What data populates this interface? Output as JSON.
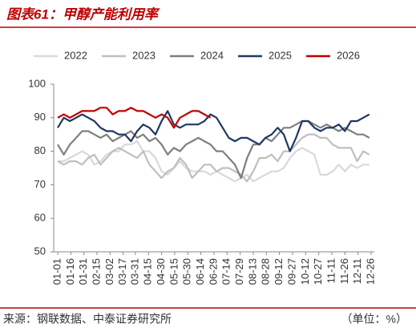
{
  "chart_data": {
    "type": "line",
    "title": "图表61：甲醇产能利用率",
    "source": "来源：钢联数据、中泰证券研究所",
    "unit": "（单位：%）",
    "x": [
      0,
      7,
      14,
      21,
      28,
      35,
      42,
      49,
      56,
      63,
      70,
      77,
      84,
      91,
      98,
      105,
      112,
      119,
      126,
      133,
      140,
      147,
      154,
      161,
      168,
      175,
      182,
      189,
      196,
      203,
      210,
      217,
      224,
      231,
      238,
      245,
      252,
      259,
      266,
      273,
      280,
      287,
      294,
      301,
      308,
      315,
      322,
      329,
      336,
      343,
      350,
      357
    ],
    "xlim": [
      0,
      359
    ],
    "xticks": [
      {
        "value": 0,
        "label": "01-01"
      },
      {
        "value": 15,
        "label": "01-16"
      },
      {
        "value": 30,
        "label": "01-31"
      },
      {
        "value": 45,
        "label": "02-15"
      },
      {
        "value": 60,
        "label": "03-02"
      },
      {
        "value": 75,
        "label": "03-17"
      },
      {
        "value": 89,
        "label": "03-31"
      },
      {
        "value": 104,
        "label": "04-15"
      },
      {
        "value": 119,
        "label": "04-30"
      },
      {
        "value": 134,
        "label": "05-15"
      },
      {
        "value": 149,
        "label": "05-30"
      },
      {
        "value": 164,
        "label": "06-14"
      },
      {
        "value": 179,
        "label": "06-29"
      },
      {
        "value": 194,
        "label": "07-14"
      },
      {
        "value": 209,
        "label": "07-29"
      },
      {
        "value": 224,
        "label": "08-13"
      },
      {
        "value": 239,
        "label": "08-28"
      },
      {
        "value": 254,
        "label": "09-12"
      },
      {
        "value": 269,
        "label": "09-27"
      },
      {
        "value": 284,
        "label": "10-12"
      },
      {
        "value": 299,
        "label": "10-27"
      },
      {
        "value": 314,
        "label": "11-11"
      },
      {
        "value": 329,
        "label": "11-26"
      },
      {
        "value": 344,
        "label": "12-11"
      },
      {
        "value": 359,
        "label": "12-26"
      }
    ],
    "ylim": [
      50,
      100
    ],
    "yticks": [
      50,
      60,
      70,
      80,
      90,
      100
    ],
    "legend": "top",
    "series": [
      {
        "name": "2022",
        "color": "#d9d9d9",
        "values": [
          77,
          77,
          78,
          79,
          80,
          79,
          76,
          77,
          79,
          80,
          80,
          82,
          82,
          83,
          80,
          80,
          78,
          74,
          73,
          75,
          77,
          75,
          74,
          74,
          74,
          73,
          74,
          73,
          72,
          71,
          72,
          73,
          71,
          72,
          73,
          74,
          74,
          75,
          78,
          80,
          81,
          80,
          79,
          73,
          73,
          74,
          76,
          74,
          76,
          75,
          76,
          76
        ]
      },
      {
        "name": "2023",
        "color": "#bfbfbf",
        "values": [
          77,
          76,
          77,
          77,
          76,
          78,
          79,
          76,
          78,
          80,
          81,
          80,
          79,
          78,
          80,
          76,
          74,
          72,
          74,
          75,
          78,
          76,
          72,
          74,
          76,
          76,
          74,
          75,
          75,
          74,
          73,
          71,
          74,
          78,
          78,
          79,
          77,
          80,
          80,
          82,
          84,
          85,
          85,
          84,
          84,
          82,
          81,
          81,
          81,
          77,
          80,
          79
        ]
      },
      {
        "name": "2024",
        "color": "#7f7f7f",
        "values": [
          82,
          79,
          82,
          84,
          86,
          86,
          85,
          84,
          85,
          83,
          84,
          85,
          86,
          84,
          85,
          83,
          84,
          82,
          79,
          81,
          80,
          82,
          83,
          84,
          83,
          82,
          80,
          80,
          78,
          76,
          72,
          78,
          82,
          82,
          84,
          83,
          85,
          87,
          87,
          88,
          89,
          89,
          88,
          87,
          88,
          87,
          86,
          87,
          86,
          85,
          85,
          84
        ]
      },
      {
        "name": "2025",
        "color": "#1f3864",
        "values": [
          87,
          90,
          89,
          90,
          91,
          90,
          89,
          87,
          86,
          86,
          85,
          85,
          83,
          86,
          88,
          87,
          85,
          89,
          92,
          88,
          87,
          88,
          88,
          88,
          89,
          91,
          90,
          87,
          84,
          83,
          84,
          84,
          83,
          82,
          84,
          85,
          87,
          85,
          80,
          84,
          89,
          89,
          87,
          86,
          87,
          87,
          88,
          86,
          89,
          89,
          90,
          91
        ]
      },
      {
        "name": "2026",
        "color": "#c00000",
        "values": [
          90,
          91,
          90,
          91,
          92,
          92,
          92,
          93,
          93,
          91,
          92,
          92,
          93,
          92,
          92,
          91,
          90,
          91,
          90,
          87,
          90,
          91,
          92,
          92,
          91,
          90,
          null,
          null,
          null,
          null,
          null,
          null,
          null,
          null,
          null,
          null,
          null,
          null,
          null,
          null,
          null,
          null,
          null,
          null,
          null,
          null,
          null,
          null,
          null,
          null,
          null,
          null
        ]
      }
    ]
  }
}
